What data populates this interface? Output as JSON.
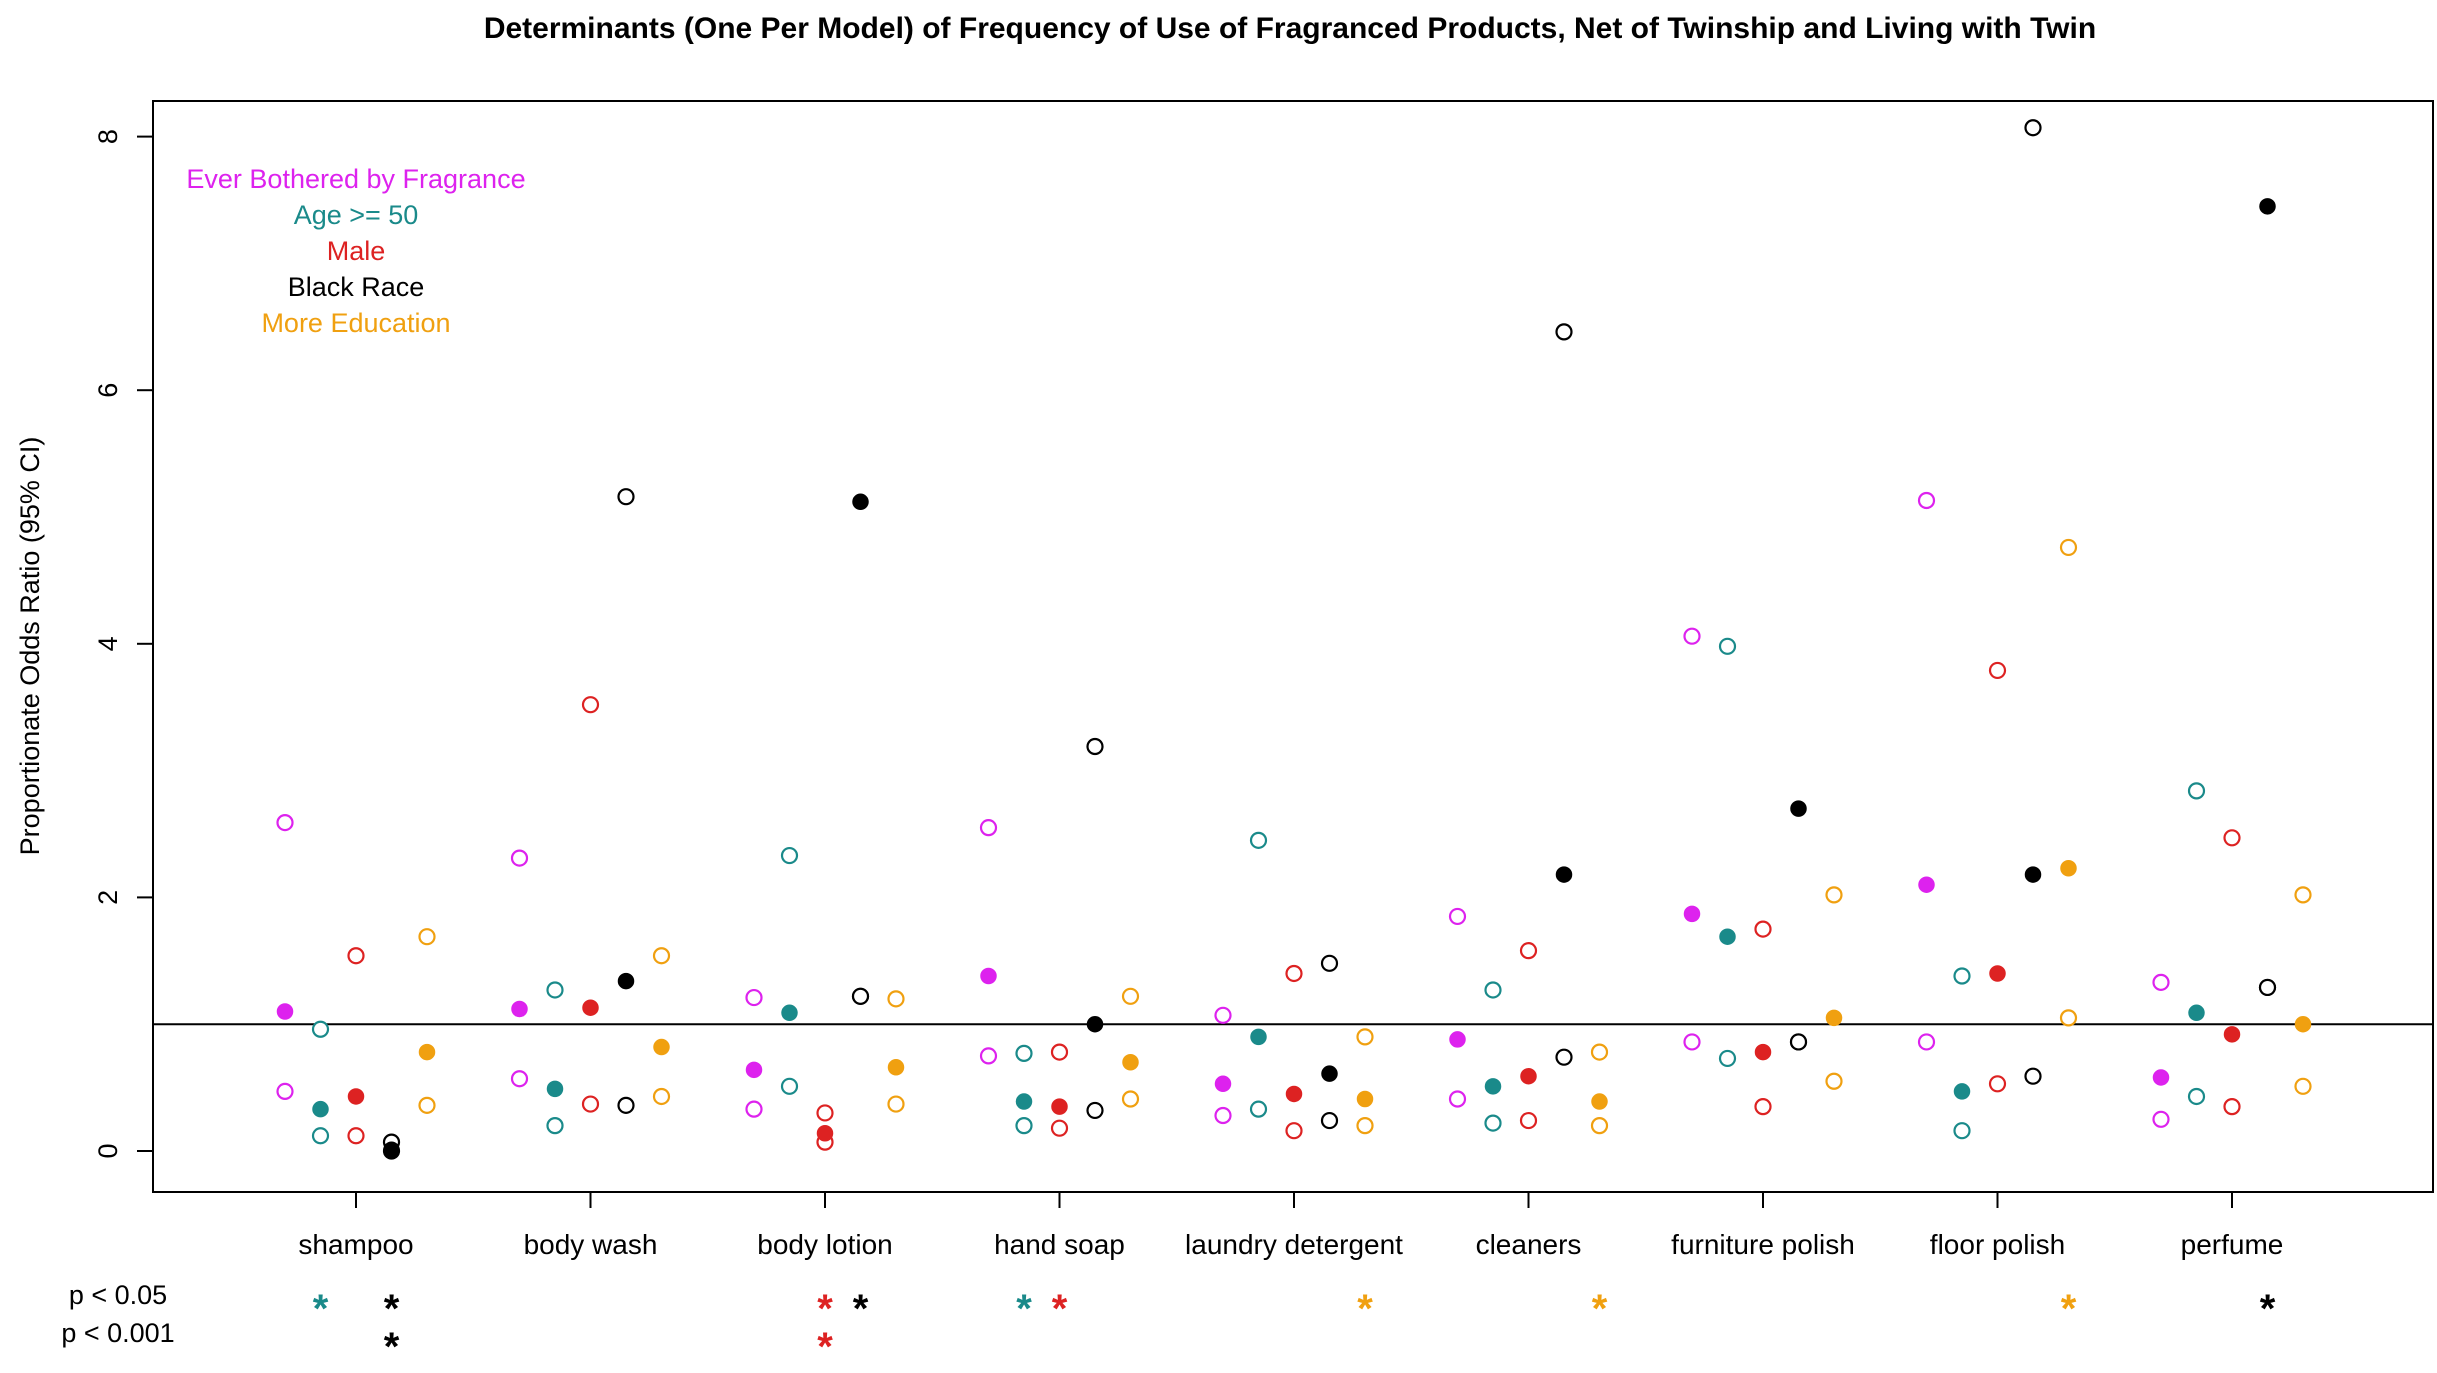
{
  "chart_data": {
    "type": "scatter",
    "title": "Determinants (One Per Model) of Frequency of Use of Fragranced Products, Net of Twinship and Living with Twin",
    "xlabel": "",
    "ylabel": "Proportionate Odds Ratio (95% CI)",
    "ylim": [
      -0.3,
      8.3
    ],
    "yticks": [
      0,
      2,
      4,
      6,
      8
    ],
    "reference_line": 1,
    "categories": [
      "shampoo",
      "body wash",
      "body lotion",
      "hand soap",
      "laundry detergent",
      "cleaners",
      "furniture polish",
      "floor polish",
      "perfume"
    ],
    "series": [
      {
        "name": "Ever Bothered by Fragrance",
        "color": "#dd22ee",
        "offset": -2,
        "estimate": [
          1.1,
          1.12,
          0.64,
          1.38,
          0.53,
          0.88,
          1.87,
          2.1,
          0.58
        ],
        "ci_low": [
          0.47,
          0.57,
          0.33,
          0.75,
          0.28,
          0.41,
          0.86,
          0.86,
          0.25
        ],
        "ci_high": [
          2.59,
          2.31,
          1.21,
          2.55,
          1.07,
          1.85,
          4.06,
          5.13,
          1.33
        ]
      },
      {
        "name": "Age >= 50",
        "color": "#1a8a8a",
        "offset": -1,
        "estimate": [
          0.33,
          0.49,
          1.09,
          0.39,
          0.9,
          0.51,
          1.69,
          0.47,
          1.09
        ],
        "ci_low": [
          0.12,
          0.2,
          0.51,
          0.2,
          0.33,
          0.22,
          0.73,
          0.16,
          0.43
        ],
        "ci_high": [
          0.96,
          1.27,
          2.33,
          0.77,
          2.45,
          1.27,
          3.98,
          1.38,
          2.84
        ]
      },
      {
        "name": "Male",
        "color": "#dd2222",
        "offset": 0,
        "estimate": [
          0.43,
          1.13,
          0.14,
          0.35,
          0.45,
          0.59,
          0.78,
          1.4,
          0.92
        ],
        "ci_low": [
          0.12,
          0.37,
          0.07,
          0.18,
          0.16,
          0.24,
          0.35,
          0.53,
          0.35
        ],
        "ci_high": [
          1.54,
          3.52,
          0.3,
          0.78,
          1.4,
          1.58,
          1.75,
          3.79,
          2.47
        ]
      },
      {
        "name": "Black Race",
        "color": "#000000",
        "offset": 1,
        "estimate": [
          0.01,
          1.34,
          5.12,
          1.0,
          0.61,
          2.18,
          2.7,
          2.18,
          7.45
        ],
        "ci_low": [
          0.0,
          0.36,
          1.22,
          0.32,
          0.24,
          0.74,
          0.86,
          0.59,
          1.29
        ],
        "ci_high": [
          0.07,
          5.16,
          1.22,
          3.19,
          1.48,
          6.46,
          0.86,
          8.07,
          1.29
        ]
      },
      {
        "name": "More Education",
        "color": "#f0a010",
        "offset": 2,
        "estimate": [
          0.78,
          0.82,
          0.66,
          0.7,
          0.41,
          0.39,
          1.05,
          2.23,
          1.0
        ],
        "ci_low": [
          0.36,
          0.43,
          0.37,
          0.41,
          0.2,
          0.2,
          0.55,
          1.05,
          0.51
        ],
        "ci_high": [
          1.69,
          1.54,
          1.2,
          1.22,
          0.9,
          0.78,
          2.02,
          4.76,
          2.02
        ]
      }
    ],
    "significance_rows": [
      {
        "label": "p < 0.05",
        "stars": [
          {
            "category": "shampoo",
            "series": "Age >= 50"
          },
          {
            "category": "shampoo",
            "series": "Black Race"
          },
          {
            "category": "body lotion",
            "series": "Male"
          },
          {
            "category": "body lotion",
            "series": "Black Race"
          },
          {
            "category": "hand soap",
            "series": "Age >= 50"
          },
          {
            "category": "hand soap",
            "series": "Male"
          },
          {
            "category": "laundry detergent",
            "series": "More Education"
          },
          {
            "category": "cleaners",
            "series": "More Education"
          },
          {
            "category": "floor polish",
            "series": "More Education"
          },
          {
            "category": "perfume",
            "series": "Black Race"
          }
        ]
      },
      {
        "label": "p < 0.001",
        "stars": [
          {
            "category": "shampoo",
            "series": "Black Race"
          },
          {
            "category": "body lotion",
            "series": "Male"
          }
        ]
      }
    ],
    "star_symbol": "*",
    "legend_position": "top-left"
  }
}
